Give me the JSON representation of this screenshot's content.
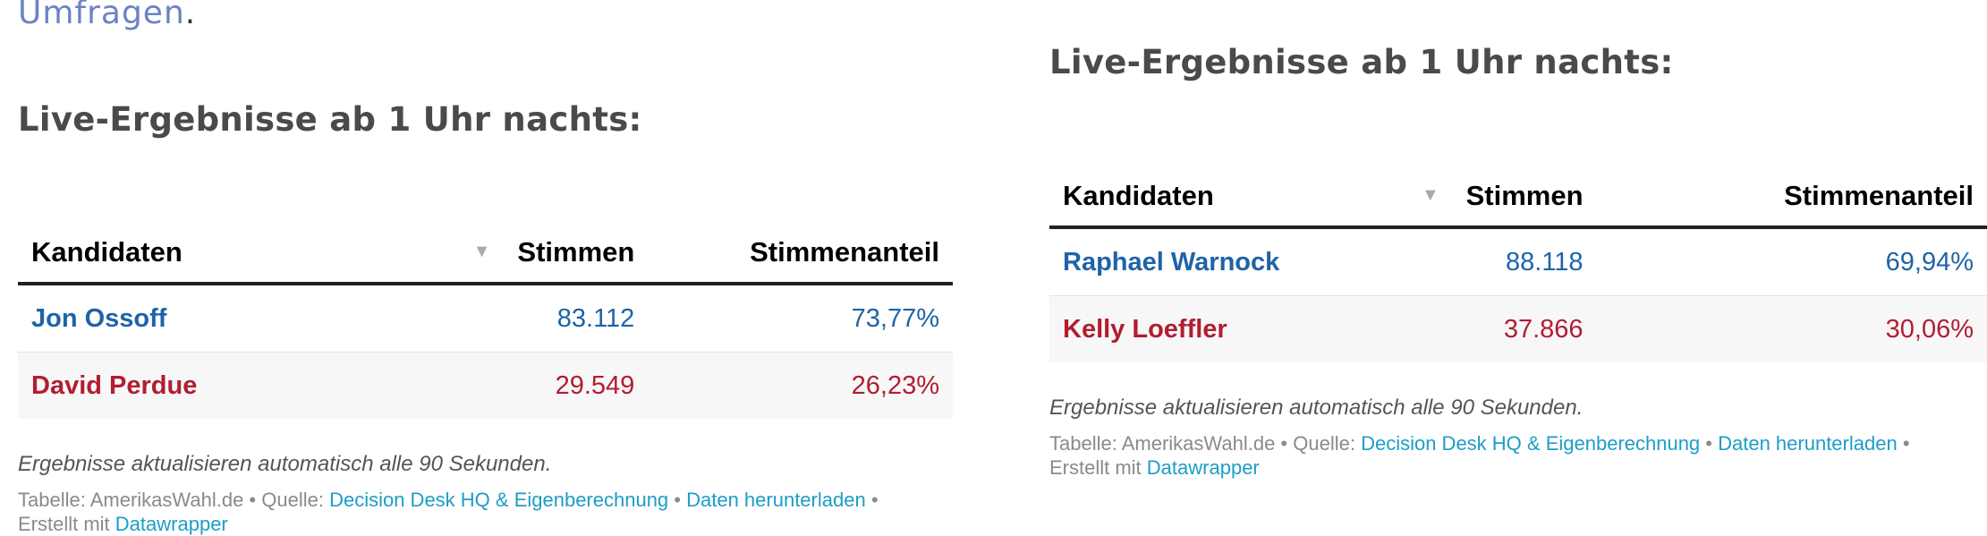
{
  "colors": {
    "democrat": "#1f63a8",
    "republican": "#b21d30",
    "link": "#1d9dc7",
    "intro_link": "#6b82c4"
  },
  "left": {
    "intro_link": "Umfragen",
    "intro_period": ".",
    "heading": "Live-Ergebnisse ab 1 Uhr nachts:",
    "table": {
      "headers": [
        "Kandidaten",
        "Stimmen",
        "Stimmenanteil"
      ],
      "sort_icon": "sort-down-icon",
      "rows": [
        {
          "name": "Jon Ossoff",
          "votes": "83.112",
          "share": "73,77%",
          "party": "democrat"
        },
        {
          "name": "David Perdue",
          "votes": "29.549",
          "share": "26,23%",
          "party": "republican"
        }
      ]
    },
    "notes": "Ergebnisse aktualisieren automatisch alle 90 Sekunden.",
    "footer": {
      "table_label": "Tabelle: AmerikasWahl.de",
      "sep": " • ",
      "source_label": "Quelle: ",
      "source_link": "Decision Desk HQ & Eigenberechnung",
      "download_link": "Daten herunterladen",
      "created_label": "Erstellt mit ",
      "created_link": "Datawrapper"
    }
  },
  "right": {
    "heading": "Live-Ergebnisse ab 1 Uhr nachts:",
    "table": {
      "headers": [
        "Kandidaten",
        "Stimmen",
        "Stimmenanteil"
      ],
      "sort_icon": "sort-down-icon",
      "rows": [
        {
          "name": "Raphael Warnock",
          "votes": "88.118",
          "share": "69,94%",
          "party": "democrat"
        },
        {
          "name": "Kelly Loeffler",
          "votes": "37.866",
          "share": "30,06%",
          "party": "republican"
        }
      ]
    },
    "notes": "Ergebnisse aktualisieren automatisch alle 90 Sekunden.",
    "footer": {
      "table_label": "Tabelle: AmerikasWahl.de",
      "sep": " • ",
      "source_label": "Quelle: ",
      "source_link": "Decision Desk HQ & Eigenberechnung",
      "download_link": "Daten herunterladen",
      "created_label": "Erstellt mit ",
      "created_link": "Datawrapper"
    }
  }
}
